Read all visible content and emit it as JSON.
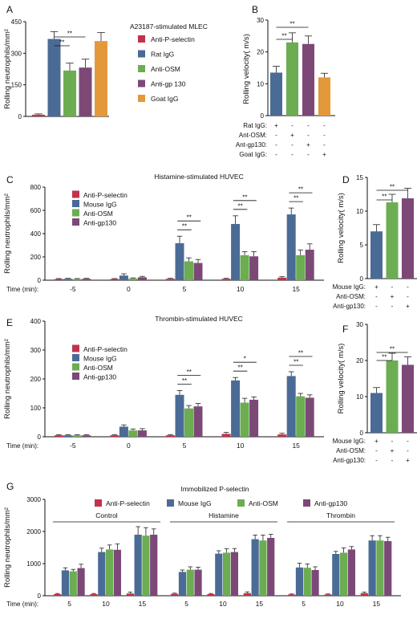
{
  "colors": {
    "red": "#c0334a",
    "blue": "#4a6b96",
    "green": "#6cad52",
    "purple": "#7c4977",
    "orange": "#e3993a",
    "axis": "#111111"
  },
  "chart_data": [
    {
      "id": "A",
      "type": "bar",
      "panel_label": "A",
      "title": "",
      "xlabel": "",
      "ylabel": "Rolling neutrophils/mm²",
      "ylim": [
        0,
        450
      ],
      "yticks": [
        "0",
        "150",
        "300",
        "450"
      ],
      "categories": [
        "Anti-P-selectin",
        "Rat IgG",
        "Anti-OSM",
        "Anti-gp 130",
        "Goat IgG"
      ],
      "values": [
        8,
        368,
        218,
        232,
        358
      ],
      "errors": [
        4,
        35,
        35,
        40,
        40
      ],
      "bar_colors": [
        "red",
        "blue",
        "green",
        "purple",
        "orange"
      ],
      "legend": {
        "title": "A23187-stimulated MLEC",
        "placement": "right",
        "entries": [
          "Anti-P-selectin",
          "Rat IgG",
          "Anti-OSM",
          "Anti-gp 130",
          "Goat IgG"
        ]
      },
      "significance": [
        {
          "from": 1,
          "to": 2,
          "label": "**"
        },
        {
          "from": 1,
          "to": 3,
          "label": "**"
        }
      ]
    },
    {
      "id": "B",
      "type": "bar",
      "panel_label": "B",
      "title": "",
      "xlabel": "",
      "ylabel": "Rolling velocity(  m/s)",
      "ylim": [
        0,
        30
      ],
      "yticks": [
        "0",
        "10",
        "20",
        "30"
      ],
      "values": [
        13.5,
        23,
        22.5,
        12
      ],
      "errors": [
        2,
        3,
        2.5,
        1.3
      ],
      "bar_colors": [
        "blue",
        "green",
        "purple",
        "orange"
      ],
      "treatment_rows": [
        {
          "label": "Rat IgG:",
          "marks": [
            "+",
            "-",
            "-",
            "-"
          ]
        },
        {
          "label": "Ant-OSM:",
          "marks": [
            "-",
            "+",
            "-",
            "-"
          ]
        },
        {
          "label": "Ant-gp130:",
          "marks": [
            "-",
            "-",
            "+",
            "-"
          ]
        },
        {
          "label": "Goat IgG:",
          "marks": [
            "-",
            "-",
            "-",
            "+"
          ]
        }
      ],
      "significance": [
        {
          "from": 0,
          "to": 1,
          "label": "**"
        },
        {
          "from": 0,
          "to": 2,
          "label": "**"
        }
      ]
    },
    {
      "id": "C",
      "type": "bar",
      "panel_label": "C",
      "title": "Histamine-stimulated HUVEC",
      "xlabel": "Time (min):",
      "ylabel": "Rolling neutrophils/mm²",
      "ylim": [
        0,
        800
      ],
      "yticks": [
        "0",
        "200",
        "400",
        "600",
        "800"
      ],
      "categories": [
        "-5",
        "0",
        "5",
        "10",
        "15"
      ],
      "series": [
        {
          "name": "Anti-P-selectin",
          "color": "red",
          "values": [
            10,
            10,
            12,
            12,
            22
          ],
          "errors": [
            4,
            4,
            4,
            4,
            8
          ]
        },
        {
          "name": "Mouse IgG",
          "color": "blue",
          "values": [
            12,
            40,
            318,
            483,
            565
          ],
          "errors": [
            4,
            15,
            60,
            70,
            55
          ]
        },
        {
          "name": "Anti-OSM",
          "color": "green",
          "values": [
            10,
            15,
            162,
            215,
            215
          ],
          "errors": [
            4,
            5,
            30,
            30,
            45
          ]
        },
        {
          "name": "Anti-gp130",
          "color": "purple",
          "values": [
            12,
            25,
            148,
            205,
            262
          ],
          "errors": [
            4,
            8,
            30,
            40,
            50
          ]
        }
      ],
      "legend_placement": "top-left",
      "significance": [
        {
          "group": 2,
          "from": 1,
          "to": 2,
          "label": "**"
        },
        {
          "group": 2,
          "from": 1,
          "to": 3,
          "label": "**"
        },
        {
          "group": 3,
          "from": 1,
          "to": 2,
          "label": "**"
        },
        {
          "group": 3,
          "from": 1,
          "to": 3,
          "label": "**"
        },
        {
          "group": 4,
          "from": 1,
          "to": 2,
          "label": "**"
        },
        {
          "group": 4,
          "from": 1,
          "to": 3,
          "label": "**"
        }
      ]
    },
    {
      "id": "D",
      "type": "bar",
      "panel_label": "D",
      "title": "",
      "xlabel": "",
      "ylabel": "Rolling velocity(  m/s)",
      "ylim": [
        0,
        15
      ],
      "yticks": [
        "0",
        "5",
        "10",
        "15"
      ],
      "values": [
        7,
        11.3,
        11.9
      ],
      "errors": [
        1,
        1.2,
        1.5
      ],
      "bar_colors": [
        "blue",
        "green",
        "purple"
      ],
      "treatment_rows": [
        {
          "label": "Mouse IgG:",
          "marks": [
            "+",
            "-",
            "-"
          ]
        },
        {
          "label": "Anti-OSM:",
          "marks": [
            "-",
            "+",
            "-"
          ]
        },
        {
          "label": "Anti-gp130:",
          "marks": [
            "-",
            "-",
            "+"
          ]
        }
      ],
      "significance": [
        {
          "from": 0,
          "to": 1,
          "label": "**"
        },
        {
          "from": 0,
          "to": 2,
          "label": "**"
        }
      ]
    },
    {
      "id": "E",
      "type": "bar",
      "panel_label": "E",
      "title": "Thrombin-stimulated HUVEC",
      "xlabel": "Time (min):",
      "ylabel": "Rolling neutrophils/mm²",
      "ylim": [
        0,
        400
      ],
      "yticks": [
        "0",
        "100",
        "200",
        "300",
        "400"
      ],
      "categories": [
        "-5",
        "0",
        "5",
        "10",
        "15"
      ],
      "series": [
        {
          "name": "Anti-P-selectin",
          "color": "red",
          "values": [
            5,
            5,
            5,
            10,
            8
          ],
          "errors": [
            2,
            2,
            2,
            5,
            4
          ]
        },
        {
          "name": "Mouse IgG",
          "color": "blue",
          "values": [
            5,
            35,
            145,
            195,
            210
          ],
          "errors": [
            2,
            6,
            15,
            10,
            15
          ]
        },
        {
          "name": "Anti-OSM",
          "color": "green",
          "values": [
            5,
            22,
            98,
            118,
            140
          ],
          "errors": [
            2,
            5,
            10,
            15,
            10
          ]
        },
        {
          "name": "Anti-gp130",
          "color": "purple",
          "values": [
            5,
            22,
            105,
            128,
            135
          ],
          "errors": [
            2,
            6,
            10,
            10,
            10
          ]
        }
      ],
      "legend_placement": "top-left",
      "significance": [
        {
          "group": 2,
          "from": 1,
          "to": 2,
          "label": "**"
        },
        {
          "group": 2,
          "from": 1,
          "to": 3,
          "label": "**"
        },
        {
          "group": 3,
          "from": 1,
          "to": 2,
          "label": "**"
        },
        {
          "group": 3,
          "from": 1,
          "to": 3,
          "label": "*"
        },
        {
          "group": 4,
          "from": 1,
          "to": 2,
          "label": "**"
        },
        {
          "group": 4,
          "from": 1,
          "to": 3,
          "label": "**"
        }
      ]
    },
    {
      "id": "F",
      "type": "bar",
      "panel_label": "F",
      "title": "",
      "xlabel": "",
      "ylabel": "Rolling velocity(  m/s)",
      "ylim": [
        0,
        30
      ],
      "yticks": [
        "0",
        "10",
        "20",
        "30"
      ],
      "values": [
        11,
        20,
        18.8
      ],
      "errors": [
        1.5,
        2,
        2.2
      ],
      "bar_colors": [
        "blue",
        "green",
        "purple"
      ],
      "treatment_rows": [
        {
          "label": "Mouse IgG:",
          "marks": [
            "+",
            "-",
            "-"
          ]
        },
        {
          "label": "Anti-OSM:",
          "marks": [
            "-",
            "+",
            "-"
          ]
        },
        {
          "label": "Anti-gp130:",
          "marks": [
            "-",
            "-",
            "+"
          ]
        }
      ],
      "significance": [
        {
          "from": 0,
          "to": 1,
          "label": "**"
        },
        {
          "from": 0,
          "to": 2,
          "label": "**"
        }
      ]
    },
    {
      "id": "G",
      "type": "bar",
      "panel_label": "G",
      "title": "Immobilized P-selectin",
      "xlabel": "Time (min):",
      "ylabel": "Rolling neutrophils/mm²",
      "ylim": [
        0,
        3000
      ],
      "yticks": [
        "0",
        "1000",
        "2000",
        "3000"
      ],
      "conditions": [
        "Control",
        "Histamine",
        "Thrombin"
      ],
      "categories": [
        "5",
        "10",
        "15",
        "5",
        "10",
        "15",
        "5",
        "10",
        "15"
      ],
      "legend_placement": "top",
      "series": [
        {
          "name": "Anti-P-selectin",
          "color": "red",
          "values": [
            50,
            50,
            70,
            60,
            50,
            80,
            40,
            40,
            80
          ],
          "errors": [
            20,
            20,
            40,
            20,
            20,
            40,
            15,
            15,
            30
          ]
        },
        {
          "name": "Mouse IgG",
          "color": "blue",
          "values": [
            790,
            1360,
            1900,
            740,
            1310,
            1760,
            880,
            1300,
            1720
          ],
          "errors": [
            80,
            120,
            250,
            60,
            90,
            130,
            130,
            80,
            150
          ]
        },
        {
          "name": "Anti-OSM",
          "color": "green",
          "values": [
            760,
            1440,
            1870,
            810,
            1340,
            1720,
            870,
            1340,
            1720
          ],
          "errors": [
            60,
            140,
            250,
            90,
            120,
            170,
            120,
            150,
            150
          ]
        },
        {
          "name": "Anti-gp130",
          "color": "purple",
          "values": [
            860,
            1430,
            1900,
            810,
            1360,
            1800,
            800,
            1440,
            1700
          ],
          "errors": [
            120,
            180,
            180,
            80,
            110,
            110,
            100,
            90,
            120
          ]
        }
      ]
    }
  ]
}
